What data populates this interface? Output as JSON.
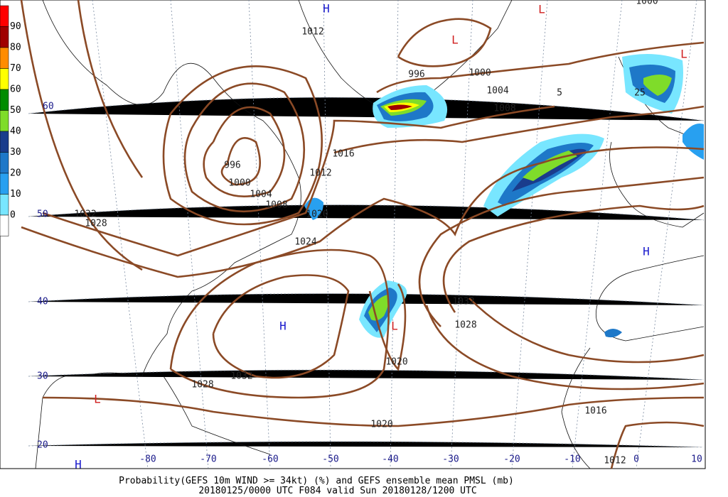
{
  "legend": {
    "labels": [
      90,
      80,
      70,
      60,
      50,
      40,
      30,
      20,
      10,
      0
    ],
    "colors": [
      "#ff0000",
      "#a00000",
      "#ff8c00",
      "#ffff00",
      "#008c00",
      "#7fdc2a",
      "#1a3c8c",
      "#1e78c8",
      "#28a0f0",
      "#78e6ff",
      "#ffffff"
    ]
  },
  "latitude_labels": [
    60,
    50,
    40,
    30,
    20
  ],
  "longitude_labels": [
    -80,
    -70,
    -60,
    -50,
    -40,
    -30,
    -20,
    -10,
    0,
    10
  ],
  "isobar_labels": [
    "1012",
    "996",
    "1000",
    "1004",
    "1008",
    "5",
    "1016",
    "1012",
    "996",
    "1000",
    "1004",
    "1008",
    "1032",
    "1028",
    "1020",
    "1024",
    "1032",
    "1028",
    "1020",
    "1032",
    "1028",
    "1020",
    "1016",
    "1012",
    "1000",
    "25"
  ],
  "highs": [
    "H",
    "H",
    "H",
    "H"
  ],
  "lows": [
    "L",
    "L",
    "L",
    "L",
    "L"
  ],
  "caption": [
    "Probability(GEFS 10m WIND >= 34kt) (%) and GEFS ensemble mean PMSL (mb)",
    "20180125/0000 UTC F084 valid Sun 20180128/1200 UTC"
  ]
}
